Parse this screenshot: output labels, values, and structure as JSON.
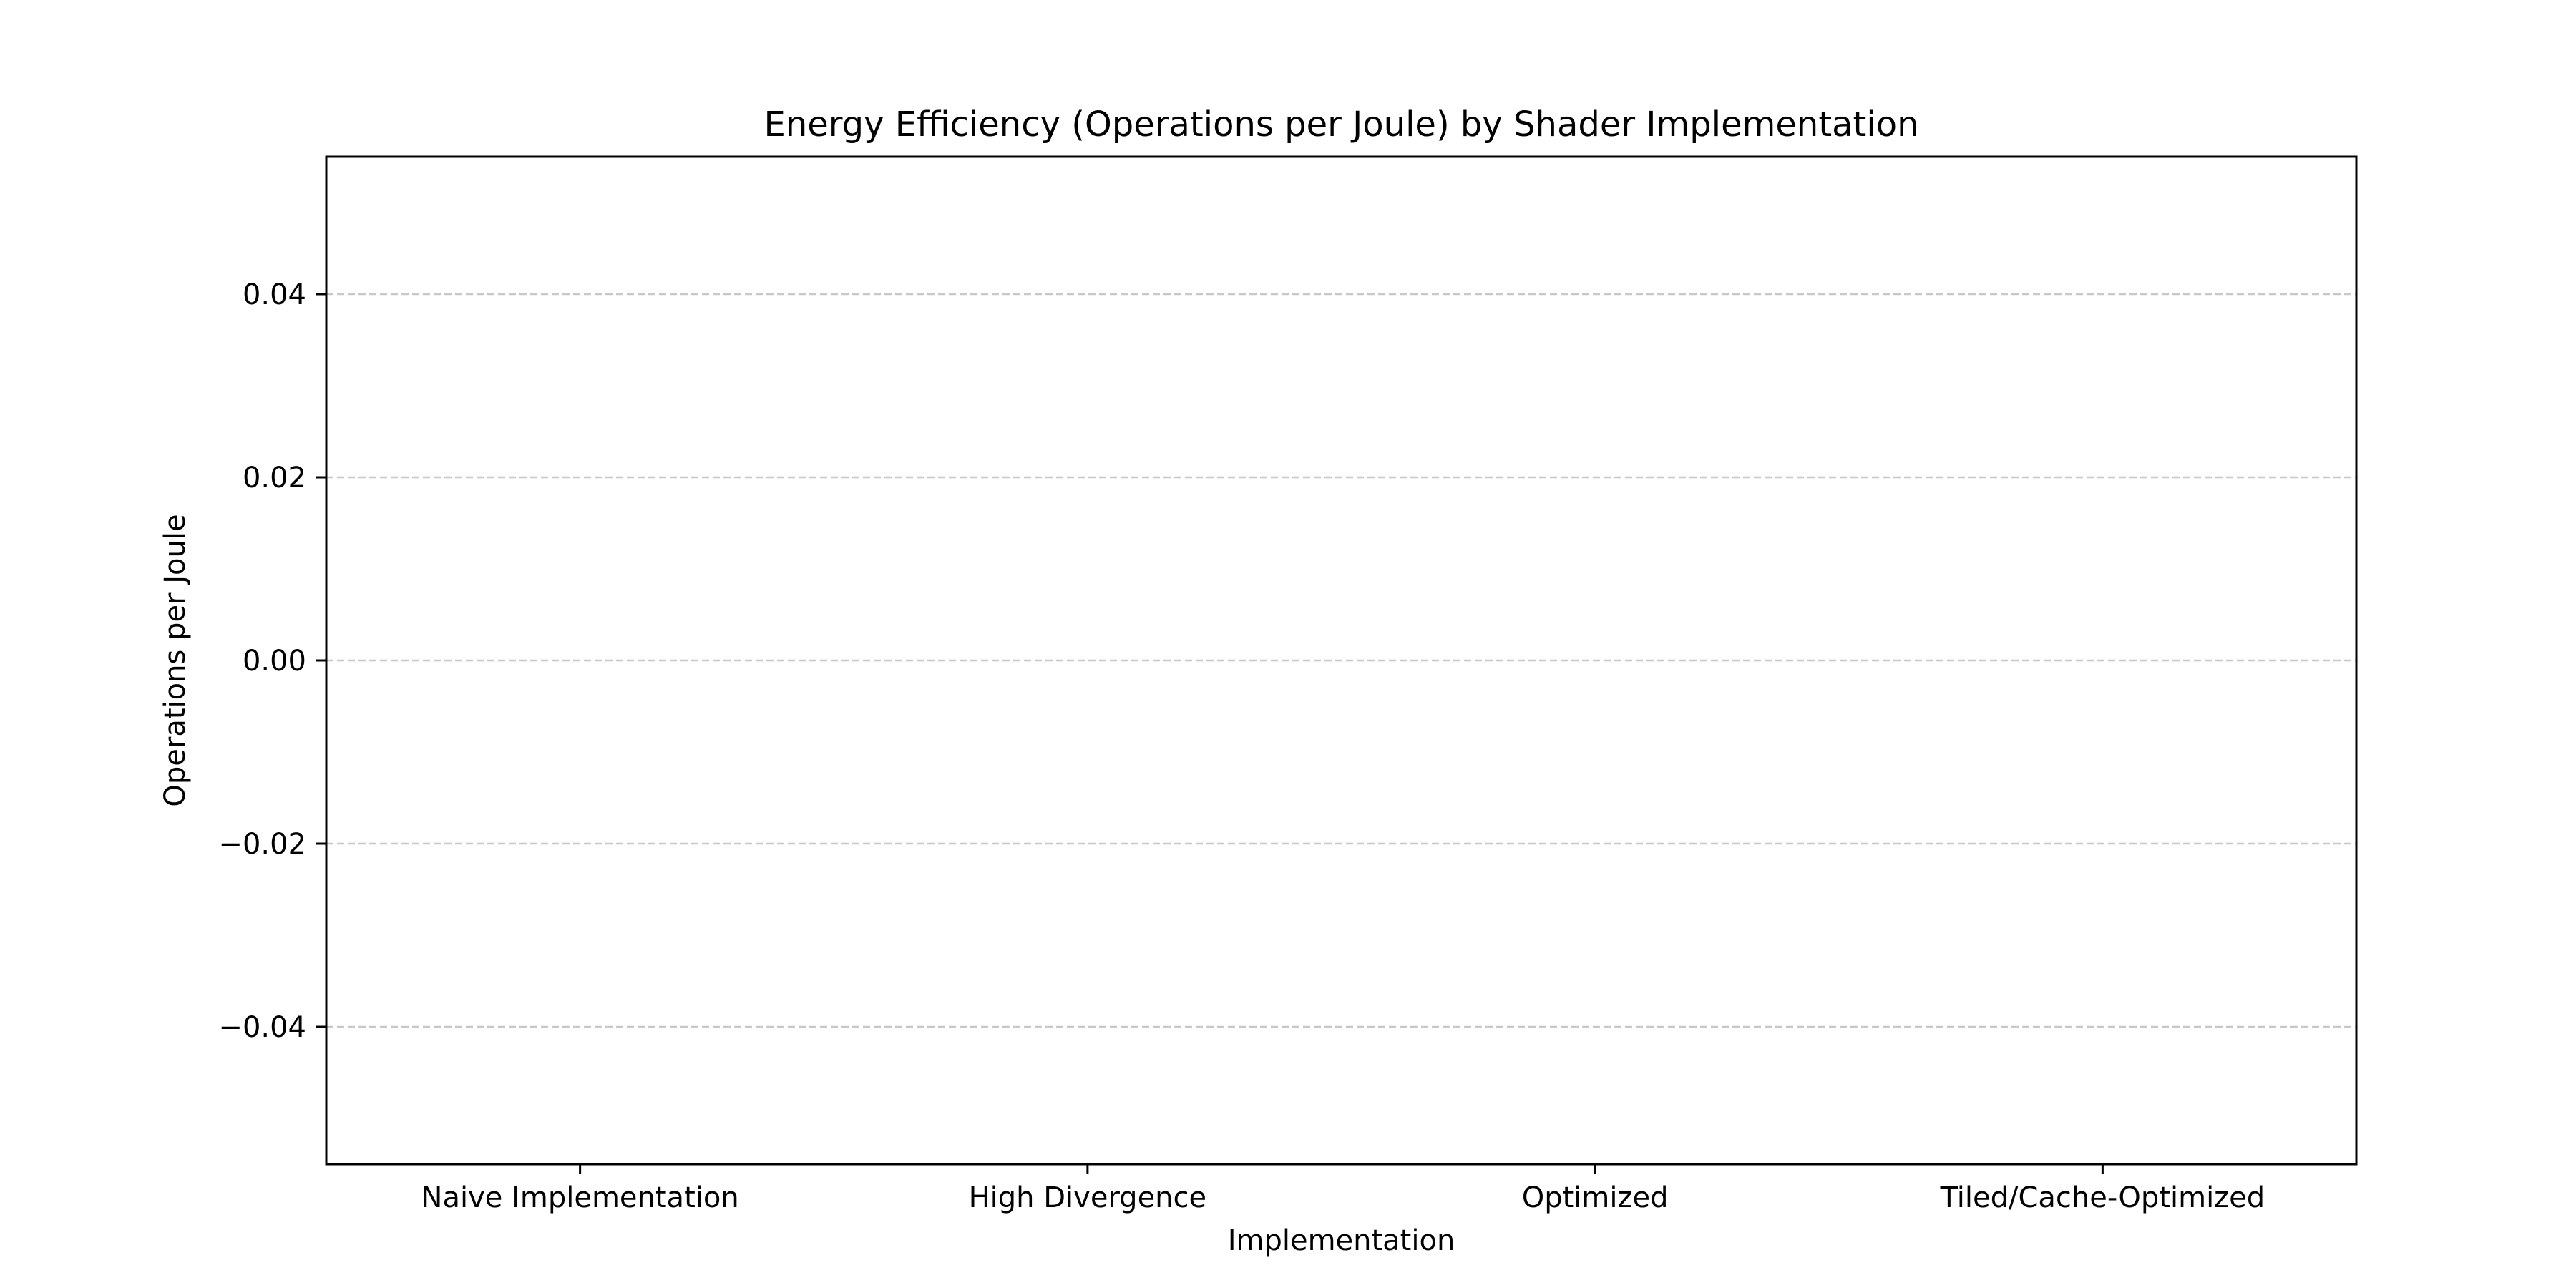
{
  "chart_data": {
    "type": "bar",
    "title": "Energy Efficiency (Operations per Joule) by Shader Implementation",
    "xlabel": "Implementation",
    "ylabel": "Operations per Joule",
    "categories": [
      "Naive Implementation",
      "High Divergence",
      "Optimized",
      "Tiled/Cache-Optimized"
    ],
    "values": [
      0,
      0,
      0,
      0
    ],
    "ylim": [
      -0.055,
      0.055
    ],
    "yticks": [
      -0.04,
      -0.02,
      0.0,
      0.02,
      0.04
    ],
    "ytick_labels": [
      "−0.04",
      "−0.02",
      "0.00",
      "0.02",
      "0.04"
    ],
    "grid": {
      "y": true,
      "style": "dashed",
      "color": "#c8c8c8"
    },
    "colors": {
      "axes": "#000000",
      "grid": "#c8c8c8",
      "background": "#ffffff"
    }
  }
}
